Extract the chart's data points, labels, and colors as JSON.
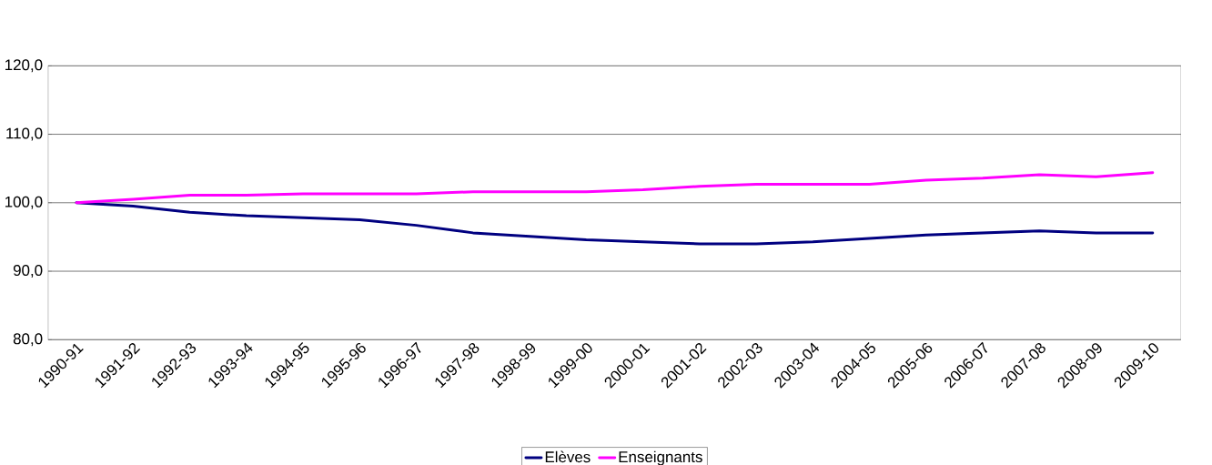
{
  "chart_data": {
    "type": "line",
    "categories": [
      "1990-91",
      "1991-92",
      "1992-93",
      "1993-94",
      "1994-95",
      "1995-96",
      "1996-97",
      "1997-98",
      "1998-99",
      "1999-00",
      "2000-01",
      "2001-02",
      "2002-03",
      "2003-04",
      "2004-05",
      "2005-06",
      "2006-07",
      "2007-08",
      "2008-09",
      "2009-10"
    ],
    "series": [
      {
        "name": "Elèves",
        "color": "#000080",
        "values": [
          100,
          99.5,
          98.6,
          98.1,
          97.8,
          97.5,
          96.7,
          95.6,
          95.1,
          94.6,
          94.3,
          94.0,
          94.0,
          94.3,
          94.8,
          95.3,
          95.6,
          95.9,
          95.6,
          95.6
        ]
      },
      {
        "name": "Enseignants",
        "color": "#ff00ff",
        "values": [
          100,
          100.5,
          101.1,
          101.1,
          101.3,
          101.3,
          101.3,
          101.6,
          101.6,
          101.6,
          101.9,
          102.4,
          102.7,
          102.7,
          102.7,
          103.3,
          103.6,
          104.1,
          103.8,
          104.4
        ]
      }
    ],
    "ylim": [
      80,
      120
    ],
    "yticks": [
      {
        "value": 80,
        "label": "80,0"
      },
      {
        "value": 90,
        "label": "90,0"
      },
      {
        "value": 100,
        "label": "100,0"
      },
      {
        "value": 110,
        "label": "110,0"
      },
      {
        "value": 120,
        "label": "120,0"
      }
    ],
    "grid": "y",
    "legend": "bottom",
    "marker": "none",
    "line_style": "solid"
  }
}
